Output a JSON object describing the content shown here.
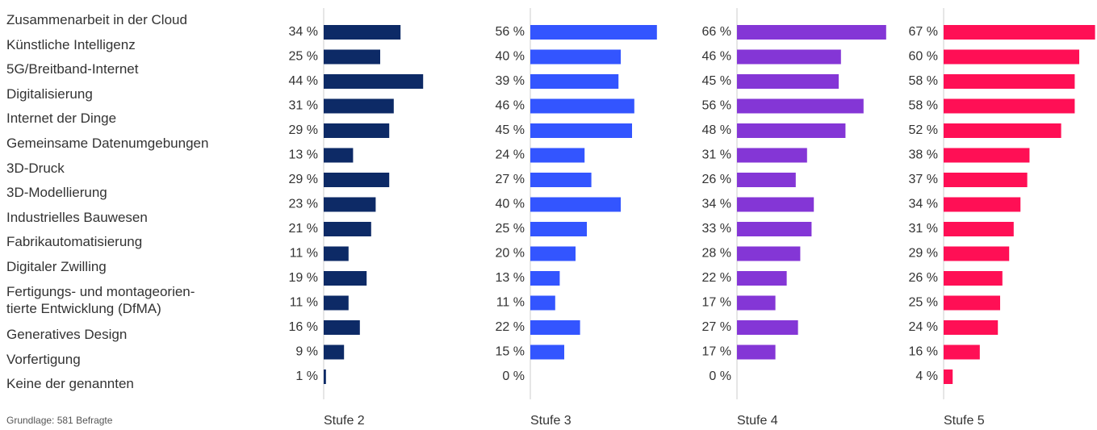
{
  "chart_data": {
    "type": "bar",
    "orientation": "horizontal",
    "categories": [
      "Zusammenarbeit in der Cloud",
      "Künstliche Intelligenz",
      "5G/Breitband-Internet",
      "Digitalisierung",
      "Internet der Dinge",
      "Gemeinsame Datenumgebungen",
      "3D-Druck",
      "3D-Modellierung",
      "Industrielles Bauwesen",
      "Fabrikautomatisierung",
      "Digitaler Zwilling",
      "Fertigungs- und montageorien-\ntierte Entwicklung (DfMA)",
      "Generatives Design",
      "Vorfertigung",
      "Keine der genannten"
    ],
    "series": [
      {
        "name": "Stufe 2",
        "color": "#0d2a66",
        "values": [
          34,
          25,
          44,
          31,
          29,
          13,
          29,
          23,
          21,
          11,
          19,
          11,
          16,
          9,
          1
        ],
        "value_labels": [
          "34 %",
          "25 %",
          "44 %",
          "31 %",
          "29 %",
          "13 %",
          "29 %",
          "23 %",
          "21 %",
          "11 %",
          "19 %",
          "11 %",
          "16 %",
          "9 %",
          "1 %"
        ]
      },
      {
        "name": "Stufe 3",
        "color": "#3355ff",
        "values": [
          56,
          40,
          39,
          46,
          45,
          24,
          27,
          40,
          25,
          20,
          13,
          11,
          22,
          15,
          0
        ],
        "value_labels": [
          "56 %",
          "40 %",
          "39 %",
          "46 %",
          "45 %",
          "24 %",
          "27 %",
          "40 %",
          "25 %",
          "20 %",
          "13 %",
          "11 %",
          "22 %",
          "15 %",
          "0 %"
        ]
      },
      {
        "name": "Stufe 4",
        "color": "#8436d6",
        "values": [
          66,
          46,
          45,
          56,
          48,
          31,
          26,
          34,
          33,
          28,
          22,
          17,
          27,
          17,
          0
        ],
        "value_labels": [
          "66 %",
          "46 %",
          "45 %",
          "56 %",
          "48 %",
          "31 %",
          "26 %",
          "34 %",
          "33 %",
          "28 %",
          "22 %",
          "17 %",
          "27 %",
          "17 %",
          "0 %"
        ]
      },
      {
        "name": "Stufe 5",
        "color": "#ff0f55",
        "values": [
          67,
          60,
          58,
          58,
          52,
          38,
          37,
          34,
          31,
          29,
          26,
          25,
          24,
          16,
          4
        ],
        "value_labels": [
          "67 %",
          "60 %",
          "58 %",
          "58 %",
          "52 %",
          "38 %",
          "37 %",
          "34 %",
          "31 %",
          "29 %",
          "26 %",
          "25 %",
          "24 %",
          "16 %",
          "4 %"
        ]
      }
    ],
    "note": "Grundlage: 581 Befragte"
  }
}
